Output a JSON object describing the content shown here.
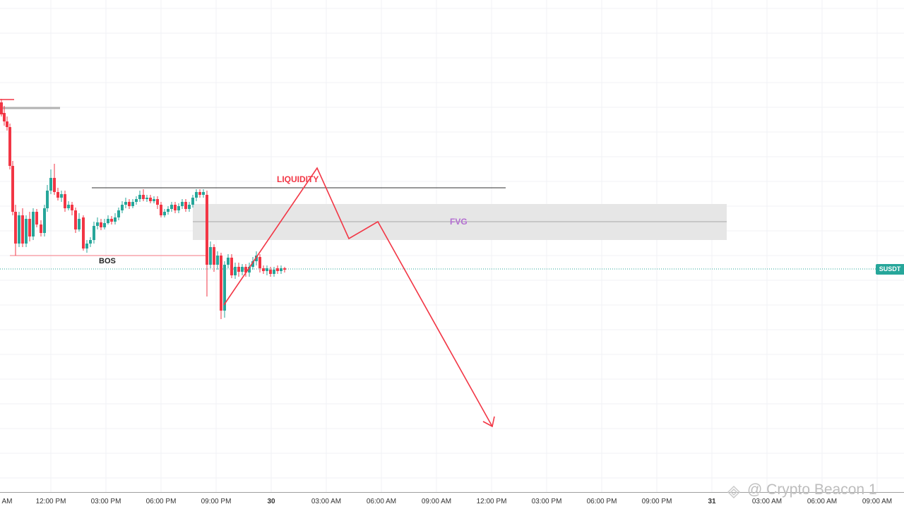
{
  "annotations": {
    "liquidity": "LIQUIDITY",
    "fvg": "FVG",
    "bos": "BOS"
  },
  "price_label": "SUSDT",
  "watermark": "@ Crypto Beacon 1",
  "time_axis": {
    "ticks": [
      "AM",
      "12:00 PM",
      "03:00 PM",
      "06:00 PM",
      "09:00 PM",
      "30",
      "03:00 AM",
      "06:00 AM",
      "09:00 AM",
      "12:00 PM",
      "03:00 PM",
      "06:00 PM",
      "09:00 PM",
      "31",
      "03:00 AM",
      "06:00 AM",
      "09:00 AM"
    ]
  },
  "colors": {
    "up_candle": "#26a69a",
    "down_candle": "#f23645",
    "projection": "#f23645",
    "fvg_zone": "#e6e6e6",
    "fvg_label": "#b36ed1",
    "price_tag": "#26a69a"
  }
}
